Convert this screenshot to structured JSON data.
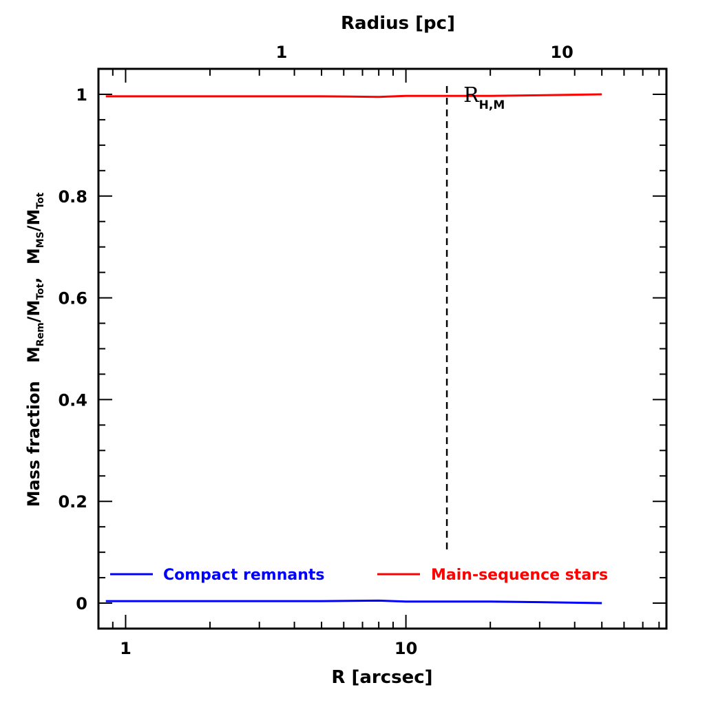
{
  "chart_data": {
    "type": "line",
    "title": "",
    "xlabel": "R [arcsec]",
    "x2label": "Radius [pc]",
    "ylabel": {
      "prefix": "Mass fraction",
      "term1_base": "M",
      "term1_sub": "Rem",
      "slash1": "/",
      "term1_den_base": "M",
      "term1_den_sub": "Tot",
      "sep": ",",
      "term2_base": "M",
      "term2_sub": "MS",
      "slash2": "/",
      "term2_den_base": "M",
      "term2_den_sub": "Tot"
    },
    "x_scale": "log",
    "xlim": [
      0.8,
      85
    ],
    "ylim": [
      -0.05,
      1.05
    ],
    "x_ticks": [
      {
        "value": 1,
        "label": "1"
      },
      {
        "value": 10,
        "label": "10"
      }
    ],
    "x2_ticks": [
      {
        "value": 3.6,
        "label": "1"
      },
      {
        "value": 36,
        "label": "10"
      }
    ],
    "y_ticks": [
      {
        "value": 0,
        "label": "0"
      },
      {
        "value": 0.2,
        "label": "0.2"
      },
      {
        "value": 0.4,
        "label": "0.4"
      },
      {
        "value": 0.6,
        "label": "0.6"
      },
      {
        "value": 0.8,
        "label": "0.8"
      },
      {
        "value": 1,
        "label": "1"
      }
    ],
    "series": [
      {
        "name": "Compact remnants",
        "color": "#0000ff",
        "x": [
          0.85,
          1,
          2,
          3,
          5,
          8,
          10,
          20,
          30,
          50
        ],
        "y": [
          0.004,
          0.004,
          0.004,
          0.004,
          0.004,
          0.005,
          0.003,
          0.003,
          0.002,
          0.0
        ]
      },
      {
        "name": "Main-sequence stars",
        "color": "#ff0000",
        "x": [
          0.85,
          1,
          2,
          3,
          5,
          8,
          10,
          20,
          30,
          50
        ],
        "y": [
          0.996,
          0.996,
          0.996,
          0.996,
          0.996,
          0.995,
          0.997,
          0.997,
          0.998,
          1.0
        ]
      }
    ],
    "vline": {
      "x": 14,
      "style": "dashed",
      "color": "#000000",
      "label_base": "R",
      "label_sub": "H,M"
    },
    "legend_position": "bottom"
  }
}
